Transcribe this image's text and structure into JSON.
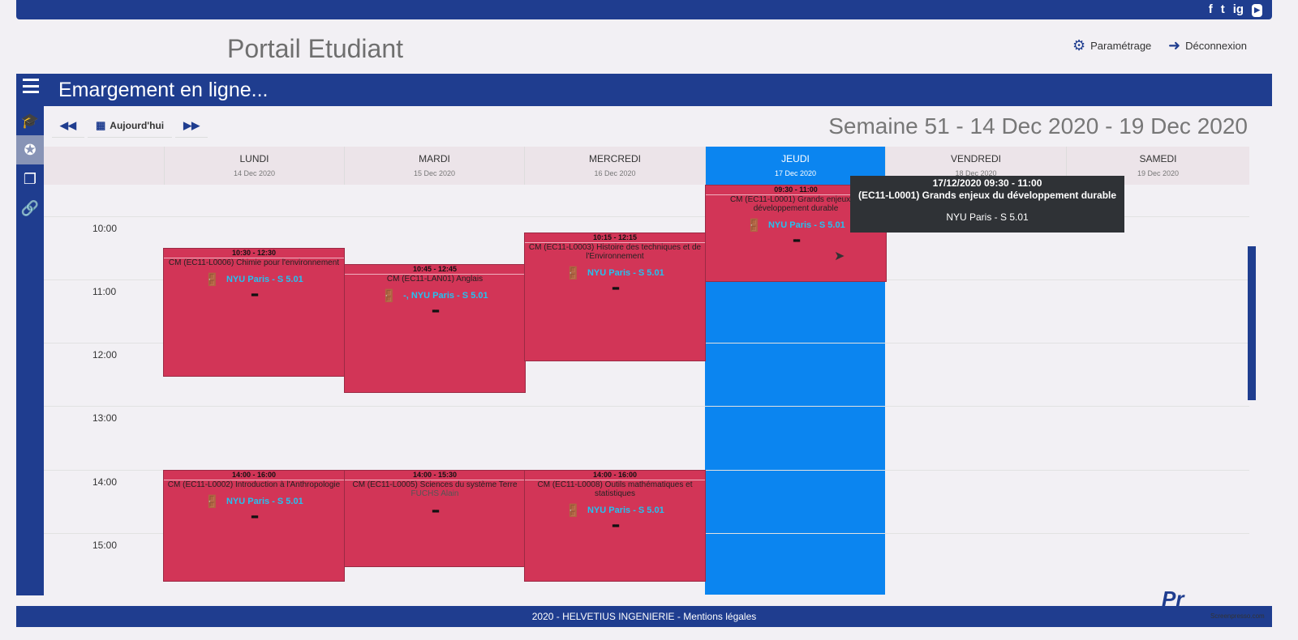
{
  "topbar": {
    "social": [
      "f",
      "t",
      "ig",
      "▶"
    ]
  },
  "header": {
    "title": "Portail Etudiant",
    "settings_label": "Paramétrage",
    "logout_label": "Déconnexion"
  },
  "appbar": {
    "title": "Emargement en ligne..."
  },
  "toolbar": {
    "today_label": "Aujourd'hui",
    "prev_icon": "◀◀",
    "next_icon": "▶▶",
    "week_title": "Semaine 51 - 14 Dec 2020 - 19 Dec 2020"
  },
  "days": [
    {
      "name": "LUNDI",
      "date": "14 Dec 2020"
    },
    {
      "name": "MARDI",
      "date": "15 Dec 2020"
    },
    {
      "name": "MERCREDI",
      "date": "16 Dec 2020"
    },
    {
      "name": "JEUDI",
      "date": "17 Dec 2020"
    },
    {
      "name": "VENDREDI",
      "date": "18 Dec 2020"
    },
    {
      "name": "SAMEDI",
      "date": "19 Dec 2020"
    }
  ],
  "times": [
    "10:00",
    "11:00",
    "12:00",
    "13:00",
    "14:00",
    "15:00"
  ],
  "events": [
    {
      "time": "10:30 - 12:30",
      "title": "CM (EC11-L0006) Chimie pour l'environnement",
      "room": "NYU Paris - S 5.01"
    },
    {
      "time": "10:45 - 12:45",
      "title": "CM (EC11-LAN01) Anglais",
      "room": "-, NYU Paris - S 5.01"
    },
    {
      "time": "10:15 - 12:15",
      "title": "CM (EC11-L0003) Histoire des techniques et de l'Environnement",
      "room": "NYU Paris - S 5.01"
    },
    {
      "time": "09:30 - 11:00",
      "title": "CM (EC11-L0001) Grands enjeux du développement durable",
      "room": "NYU Paris - S 5.01"
    },
    {
      "time": "14:00 - 16:00",
      "title": "CM (EC11-L0002) Introduction à l'Anthropologie",
      "room": "NYU Paris - S 5.01"
    },
    {
      "time": "14:00 - 15:30",
      "title": "CM (EC11-L0005) Sciences du système Terre",
      "teacher": "FUCHS Alain",
      "room": ""
    },
    {
      "time": "14:00 - 16:00",
      "title": "CM (EC11-L0008) Outils mathématiques et statistiques",
      "room": "NYU Paris - S 5.01"
    }
  ],
  "tooltip": {
    "line1": "17/12/2020 09:30 - 11:00",
    "line2": "(EC11-L0001) Grands enjeux du développement durable",
    "line3": "NYU Paris - S 5.01"
  },
  "footer": {
    "text": "2020 - HELVETIUS INGENIERIE - Mentions légales"
  },
  "watermark": {
    "text": "Screenpresso.com"
  }
}
